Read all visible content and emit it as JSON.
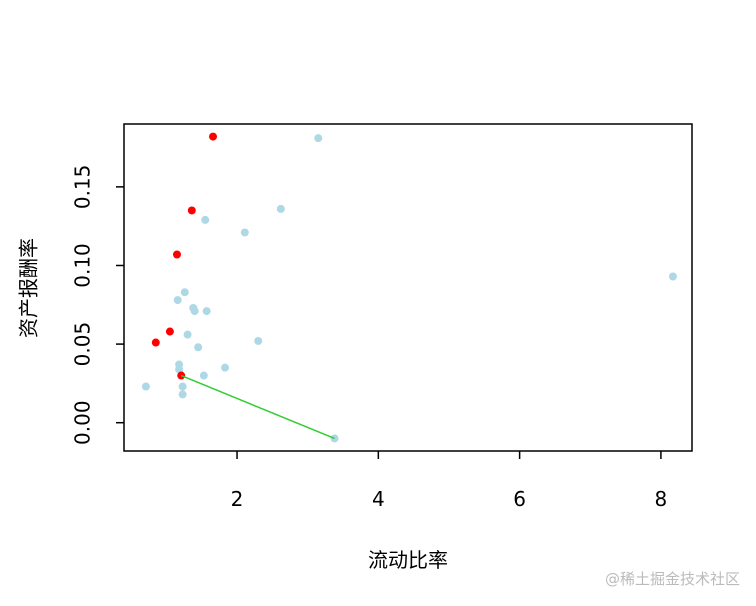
{
  "chart_data": {
    "type": "scatter",
    "x_label": "流动比率",
    "y_label": "资产报酬率",
    "watermark": "@稀土掘金技术社区",
    "xlim": [
      0.4,
      8.44
    ],
    "ylim": [
      -0.018,
      0.19
    ],
    "xticks": [
      2,
      4,
      6,
      8
    ],
    "yticks": [
      {
        "value": 0,
        "label": "0.00"
      },
      0.05,
      {
        "value": 0.1,
        "label": "0.10"
      },
      0.15
    ],
    "series": [
      {
        "color": "#add8e6",
        "mode": "points",
        "x": [
          0.71,
          3.15,
          1.55,
          2.62,
          2.11,
          8.17,
          1.26,
          1.16,
          1.38,
          1.4,
          1.57,
          1.3,
          2.3,
          1.45,
          1.18,
          1.18,
          1.83,
          1.53,
          1.23,
          1.23,
          3.38
        ],
        "values": [
          0.023,
          0.181,
          0.129,
          0.136,
          0.121,
          0.093,
          0.083,
          0.078,
          0.073,
          0.071,
          0.071,
          0.056,
          0.052,
          0.048,
          0.037,
          0.034,
          0.035,
          0.03,
          0.023,
          0.018,
          -0.01
        ]
      },
      {
        "color": "#ff0000",
        "mode": "points",
        "x": [
          1.66,
          1.36,
          1.15,
          1.05,
          0.85,
          1.21
        ],
        "values": [
          0.182,
          0.135,
          0.107,
          0.058,
          0.051,
          0.03
        ]
      },
      {
        "color": "#33cc33",
        "mode": "line",
        "x": [
          1.21,
          3.38
        ],
        "values": [
          0.03,
          -0.01
        ]
      }
    ]
  }
}
